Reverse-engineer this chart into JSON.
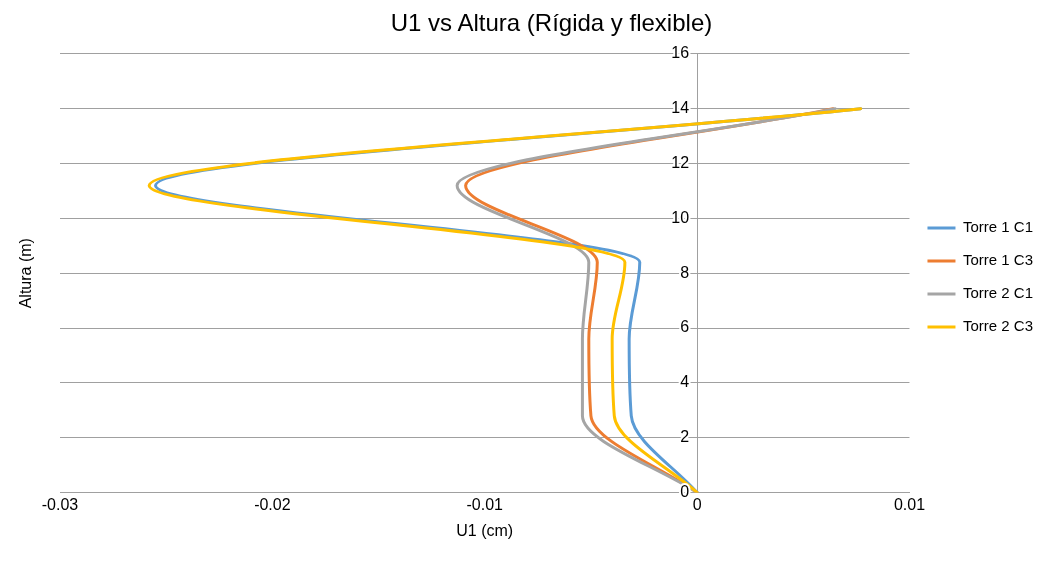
{
  "chart_data": {
    "type": "line",
    "title": "U1 vs Altura (Rígida y flexible)",
    "xlabel": "U1 (cm)",
    "ylabel": "Altura (m)",
    "xlim": [
      -0.03,
      0.01
    ],
    "xticks": [
      -0.03,
      -0.02,
      -0.01,
      0,
      0.01
    ],
    "ylim": [
      0,
      16
    ],
    "yticks": [
      0,
      2,
      4,
      6,
      8,
      10,
      12,
      14,
      16
    ],
    "grid": "y",
    "legend": "right",
    "marker": "none",
    "line_style": "solid",
    "series": [
      {
        "name": "Torre 1 C1",
        "color": "#5b9bd5",
        "x": [
          0,
          -0.0031,
          -0.0032,
          -0.0027,
          -0.0255,
          0.0077
        ],
        "values": [
          0,
          2.8,
          5.6,
          8.4,
          11.2,
          14
        ]
      },
      {
        "name": "Torre 1 C3",
        "color": "#ed7d31",
        "x": [
          0,
          -0.005,
          -0.0051,
          -0.0047,
          -0.0109,
          0.0064
        ],
        "values": [
          0,
          2.8,
          5.6,
          8.4,
          11.2,
          14
        ]
      },
      {
        "name": "Torre 2 C1",
        "color": "#a5a5a5",
        "x": [
          0,
          -0.0054,
          -0.0054,
          -0.0051,
          -0.0113,
          0.0065
        ],
        "values": [
          0,
          2.8,
          5.6,
          8.4,
          11.2,
          14
        ]
      },
      {
        "name": "Torre 2 C3",
        "color": "#ffc000",
        "x": [
          0,
          -0.0039,
          -0.004,
          -0.0034,
          -0.0258,
          0.0077
        ],
        "values": [
          0,
          2.8,
          5.6,
          8.4,
          11.2,
          14
        ]
      }
    ]
  }
}
